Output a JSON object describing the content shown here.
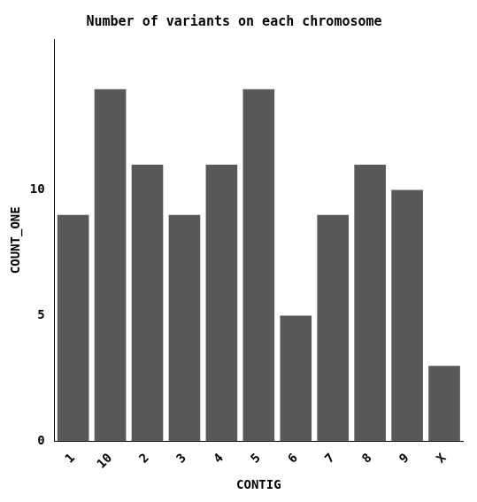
{
  "chart_data": {
    "type": "bar",
    "title": "Number of variants on each chromosome",
    "xlabel": "CONTIG",
    "ylabel": "COUNT_ONE",
    "categories": [
      "1",
      "10",
      "2",
      "3",
      "4",
      "5",
      "6",
      "7",
      "8",
      "9",
      "X"
    ],
    "values": [
      9,
      14,
      11,
      9,
      11,
      14,
      5,
      9,
      11,
      10,
      3
    ],
    "color": "#595959",
    "ylim": [
      0,
      16
    ],
    "yticks": [
      0,
      5,
      10
    ],
    "grid": false
  }
}
